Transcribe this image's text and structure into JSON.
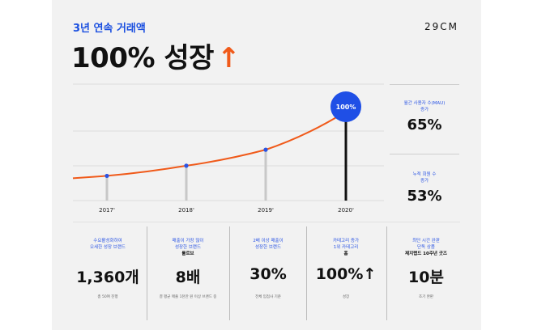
{
  "header": {
    "subtitle": "3년 연속 거래액",
    "title_main": "100% 성장",
    "title_arrow": "↑",
    "brand": "29CM"
  },
  "colors": {
    "accent_blue": "#1a4fe0",
    "line_orange": "#f05a1a",
    "bubble_blue": "#1f4fe6"
  },
  "chart_data": {
    "type": "line",
    "categories": [
      "2017'",
      "2018'",
      "2019'",
      "2020'"
    ],
    "values": [
      28,
      56,
      100,
      205
    ],
    "annotation": "100%",
    "xlabel": "",
    "ylabel": ""
  },
  "side_stats": [
    {
      "label": [
        "월간 사용자 수(MAU)",
        "증가"
      ],
      "value": "65%"
    },
    {
      "label": [
        "누적 회원 수",
        "증가"
      ],
      "value": "53%"
    }
  ],
  "bottom_stats": [
    {
      "label": [
        "수요활성화하여",
        "오세한 성장 브랜드"
      ],
      "value": "1,360개",
      "note": "총 50여 진행"
    },
    {
      "label": [
        "매출이 가장 많이",
        "성장한 브랜드"
      ],
      "sublabel": "룰르브",
      "value": "8배",
      "note": "결 평균 매출 1천만 원 이상 브랜드 중"
    },
    {
      "label": [
        "2배 이상 매출이",
        "성장한 브랜드"
      ],
      "value": "30%",
      "note": "전체 입점사 기준"
    },
    {
      "label": [
        "카테고리 증가",
        "1위 카테고리"
      ],
      "sublabel": "홈",
      "value": "100%↑",
      "note": "성장"
    },
    {
      "label": [
        "최단 시간 완판",
        "단독 상품"
      ],
      "sublabel": "재지랩드 10주년 굿즈",
      "value": "10분",
      "note": "조기 완판"
    }
  ]
}
